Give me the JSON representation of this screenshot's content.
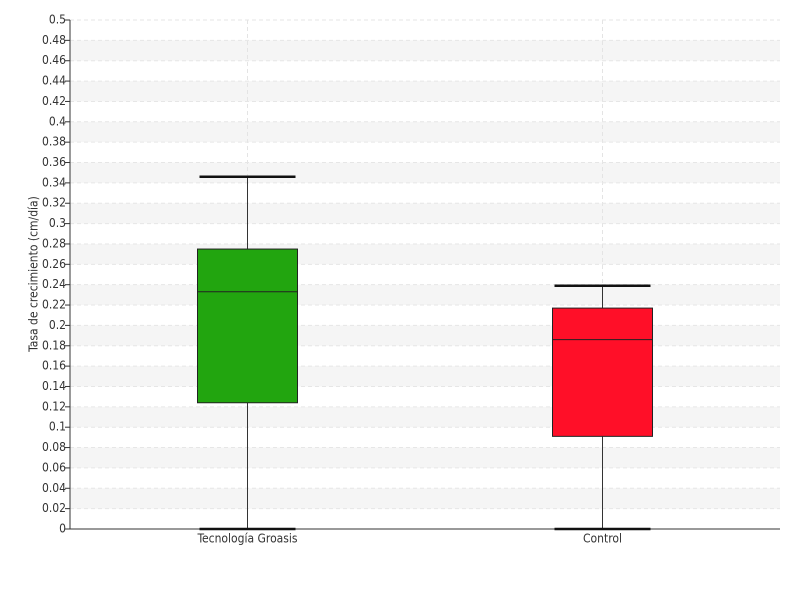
{
  "chart_data": {
    "type": "box",
    "y_label": "Tasa de crecimiento (cm/día)",
    "categories": [
      "Tecnología Groasis",
      "Control"
    ],
    "boxes": [
      {
        "color": "#22a50f",
        "min": 0,
        "q1": 0.124,
        "median": 0.233,
        "q3": 0.275,
        "max": 0.346
      },
      {
        "color": "#ff0f28",
        "min": 0,
        "q1": 0.091,
        "median": 0.186,
        "q3": 0.217,
        "max": 0.239
      }
    ],
    "ylim": [
      0,
      0.5
    ],
    "yticks": [
      0,
      0.02,
      0.04,
      0.06,
      0.08,
      0.1,
      0.12,
      0.14,
      0.16,
      0.18,
      0.2,
      0.22,
      0.24,
      0.26,
      0.28,
      0.3,
      0.32,
      0.34,
      0.36,
      0.38,
      0.4,
      0.42,
      0.44,
      0.46,
      0.48,
      0.5
    ],
    "grid": true
  }
}
